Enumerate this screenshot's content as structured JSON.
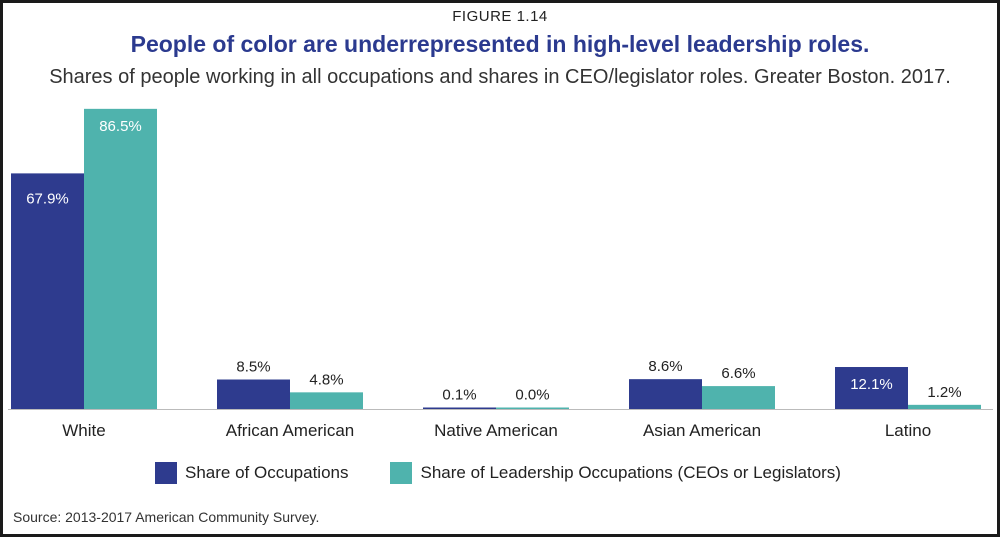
{
  "figure_label": "FIGURE 1.14",
  "title": "People of color are underrepresented in high-level leadership roles.",
  "subtitle": "Shares of people working in all occupations and shares in CEO/legislator roles. Greater Boston. 2017.",
  "source": "Source: 2013-2017 American Community Survey.",
  "colors": {
    "occupations": "#2e3b8e",
    "leadership": "#4fb3ad"
  },
  "chart_data": {
    "type": "bar",
    "categories": [
      "White",
      "African American",
      "Native American",
      "Asian American",
      "Latino"
    ],
    "series": [
      {
        "name": "Share of Occupations",
        "values": [
          67.9,
          8.5,
          0.1,
          8.6,
          12.1
        ],
        "labels": [
          "67.9%",
          "8.5%",
          "0.1%",
          "8.6%",
          "12.1%"
        ]
      },
      {
        "name": "Share of Leadership Occupations (CEOs or Legislators)",
        "values": [
          86.5,
          4.8,
          0.0,
          6.6,
          1.2
        ],
        "labels": [
          "86.5%",
          "4.8%",
          "0.0%",
          "6.6%",
          "1.2%"
        ]
      }
    ],
    "ylim": [
      0,
      100
    ],
    "grid": false,
    "legend_position": "bottom"
  }
}
